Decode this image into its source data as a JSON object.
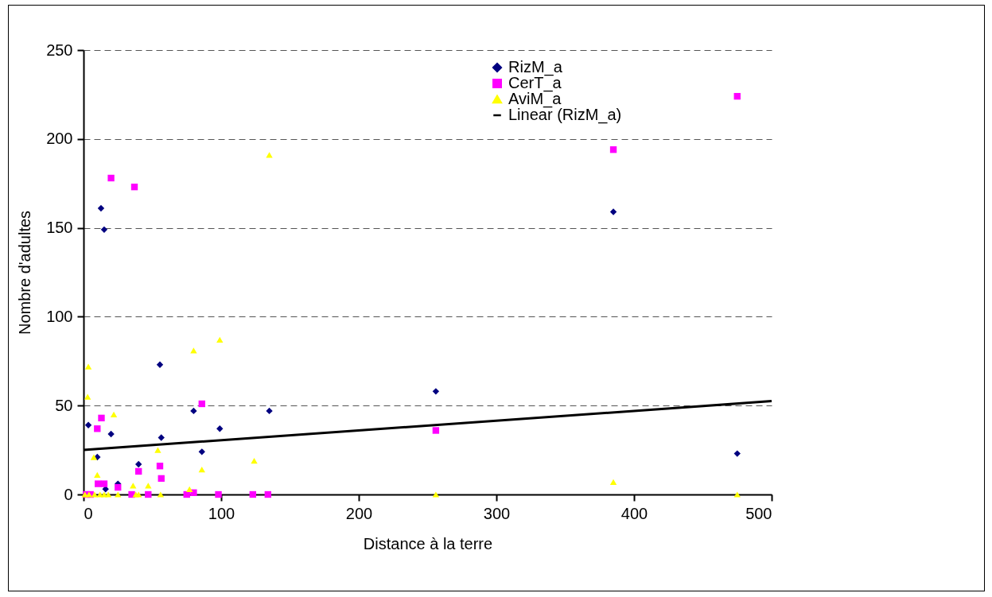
{
  "chart_data": {
    "type": "scatter",
    "xlabel": "Distance à la terre",
    "ylabel": "Nombre d'adultes",
    "xlim": [
      0,
      500
    ],
    "xticks": [
      0,
      100,
      200,
      300,
      400,
      500
    ],
    "ylim": [
      0,
      250
    ],
    "yticks": [
      0,
      50,
      100,
      150,
      200,
      250
    ],
    "grid": "y",
    "legend": "top right",
    "series": [
      {
        "name": "RizM_a",
        "color": "#000080",
        "marker": "diamond",
        "x": [
          3.5,
          10,
          12.7,
          15,
          16,
          20,
          25,
          40,
          55.5,
          56.5,
          80,
          86,
          99,
          135,
          256,
          385,
          475
        ],
        "values": [
          39,
          21,
          161,
          149,
          3,
          34,
          6,
          17,
          73,
          32,
          47,
          24,
          37,
          47,
          58,
          159,
          23
        ]
      },
      {
        "name": "CerT_a",
        "color": "#ff00ff",
        "marker": "square",
        "x": [
          2,
          5,
          10,
          10.5,
          13,
          15,
          20,
          25,
          35,
          37,
          40,
          47,
          55.5,
          56.5,
          75,
          80,
          86,
          98,
          123,
          134,
          256,
          385,
          475
        ],
        "values": [
          0,
          0,
          37,
          6,
          43,
          6,
          178,
          4,
          0,
          173,
          13,
          0,
          16,
          9,
          0,
          1,
          51,
          0,
          0,
          0,
          36,
          194,
          224
        ]
      },
      {
        "name": "AviM_a",
        "color": "#ffff00",
        "marker": "triangle",
        "x": [
          1,
          3,
          3.5,
          4,
          7.5,
          8,
          10,
          12,
          15,
          18,
          22,
          25,
          36,
          38,
          40,
          47,
          54,
          56,
          77,
          80,
          86,
          99,
          124,
          135,
          256,
          385,
          475
        ],
        "values": [
          0,
          55,
          72,
          0,
          21,
          0,
          11,
          0,
          0,
          0,
          45,
          0,
          5,
          0,
          0,
          5,
          25,
          0,
          3,
          81,
          14,
          87,
          19,
          191,
          0,
          7,
          0
        ]
      },
      {
        "name": "Linear (RizM_a)",
        "type": "line",
        "color": "#000000",
        "line_style": "solid",
        "x": [
          0,
          500
        ],
        "values": [
          25,
          52.5
        ]
      }
    ]
  }
}
